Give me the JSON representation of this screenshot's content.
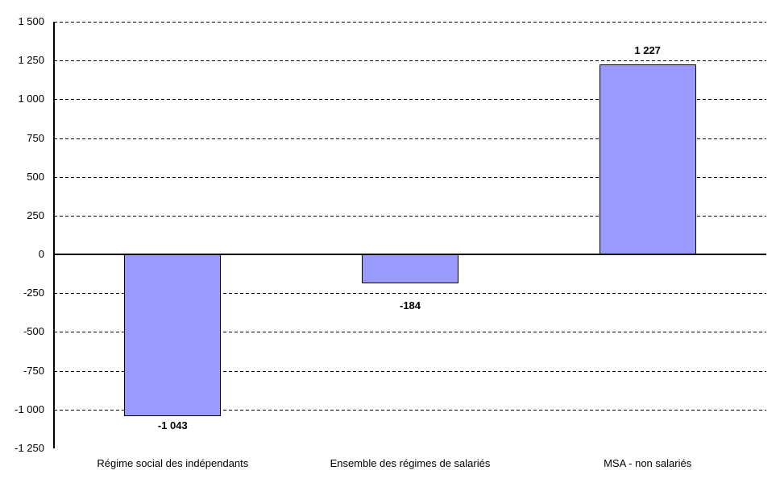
{
  "chart_data": {
    "type": "bar",
    "title": "",
    "xlabel": "",
    "ylabel": "",
    "categories": [
      "Régime social des indépendants",
      "Ensemble des régimes de salariés",
      "MSA - non salariés"
    ],
    "values": [
      -1043,
      -184,
      1227
    ],
    "data_labels": [
      "-1 043",
      "-184",
      "1 227"
    ],
    "ylim": [
      -1250,
      1500
    ],
    "ytick_step": 250,
    "yticks": [
      {
        "value": 1500,
        "label": "1 500"
      },
      {
        "value": 1250,
        "label": "1 250"
      },
      {
        "value": 1000,
        "label": "1 000"
      },
      {
        "value": 750,
        "label": "750"
      },
      {
        "value": 500,
        "label": "500"
      },
      {
        "value": 250,
        "label": "250"
      },
      {
        "value": 0,
        "label": "0"
      },
      {
        "value": -250,
        "label": "-250"
      },
      {
        "value": -500,
        "label": "-500"
      },
      {
        "value": -750,
        "label": "-750"
      },
      {
        "value": -1000,
        "label": "-1 000"
      },
      {
        "value": -1250,
        "label": "-1 250"
      }
    ],
    "grid": "horizontal-dashed",
    "legend": "none",
    "colors": {
      "bar_fill": "#9999FF",
      "bar_border": "#000000",
      "axis": "#000000",
      "gridline": "#000000",
      "background": "#FFFFFF",
      "text": "#000000"
    }
  }
}
